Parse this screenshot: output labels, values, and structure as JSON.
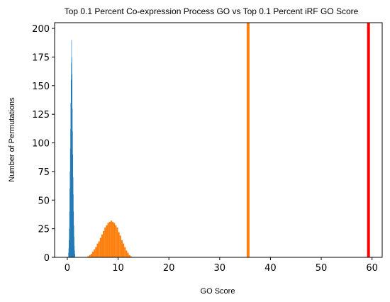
{
  "chart_data": {
    "type": "histogram",
    "title": "Top 0.1 Percent Co-expression Process GO vs Top 0.1 Percent iRF GO Score",
    "xlabel": "GO Score",
    "ylabel": "Number of Permutations",
    "xlim": [
      -2.5,
      62.0
    ],
    "ylim": [
      0,
      205
    ],
    "x_ticks": [
      0,
      10,
      20,
      30,
      40,
      50,
      60
    ],
    "y_ticks": [
      0,
      25,
      50,
      75,
      100,
      125,
      150,
      175,
      200
    ],
    "series": [
      {
        "color": "#1f77b4",
        "bin_start": 0.2,
        "bin_width": 0.05,
        "counts": [
          4,
          8,
          15,
          25,
          40,
          60,
          75,
          95,
          112,
          135,
          155,
          170,
          190,
          175,
          160,
          130,
          110,
          90,
          70,
          55,
          40,
          28,
          18,
          10,
          6,
          3
        ]
      },
      {
        "color": "#ff7f0e",
        "bin_start": 4.0,
        "bin_width": 0.3,
        "counts": [
          1,
          2,
          3,
          5,
          7,
          9,
          12,
          14,
          17,
          20,
          23,
          26,
          28,
          30,
          31,
          32,
          31,
          30,
          28,
          26,
          22,
          19,
          15,
          12,
          9,
          6,
          4,
          2,
          1
        ]
      }
    ],
    "vlines": [
      {
        "x": 35.6,
        "color": "#ff7f0e"
      },
      {
        "x": 59.3,
        "color": "#ff0000"
      }
    ],
    "grid": false,
    "legend": "none"
  }
}
